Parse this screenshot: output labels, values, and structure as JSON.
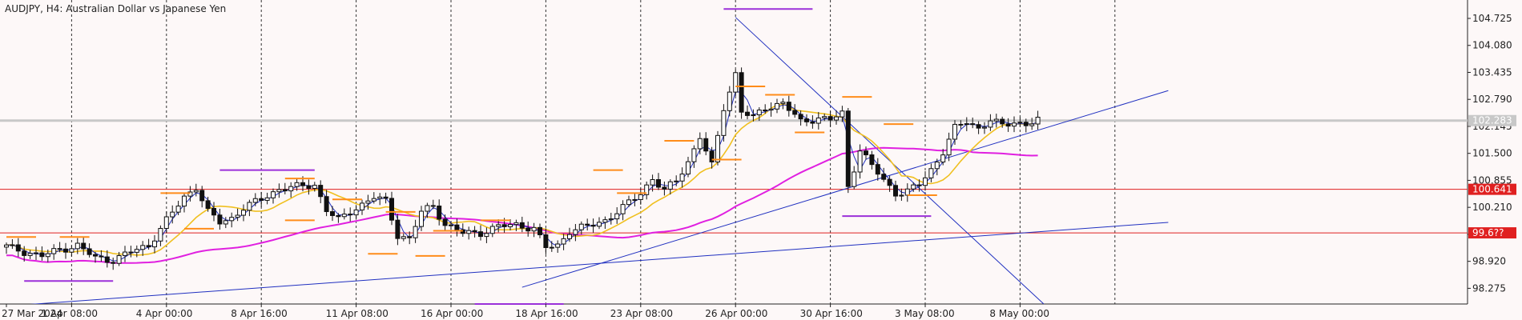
{
  "chart_data": {
    "type": "candlestick",
    "title": "AUDJPY, H4:  Australian Dollar vs Japanese Yen",
    "ylim": [
      97.9,
      105.05
    ],
    "y_ticks": [
      "104.725",
      "104.080",
      "103.435",
      "102.790",
      "102.145",
      "101.500",
      "100.855",
      "100.210",
      "99.565",
      "98.920",
      "98.275"
    ],
    "x_ticks": [
      {
        "label": "27 Mar 2024",
        "bar": 0
      },
      {
        "label": "1 Apr 08:00",
        "bar": 11
      },
      {
        "label": "4 Apr 00:00",
        "bar": 27
      },
      {
        "label": "8 Apr 16:00",
        "bar": 43
      },
      {
        "label": "11 Apr 08:00",
        "bar": 59
      },
      {
        "label": "16 Apr 00:00",
        "bar": 75
      },
      {
        "label": "18 Apr 16:00",
        "bar": 91
      },
      {
        "label": "23 Apr 08:00",
        "bar": 107
      },
      {
        "label": "26 Apr 00:00",
        "bar": 123
      },
      {
        "label": "30 Apr 16:00",
        "bar": 139
      },
      {
        "label": "3 May 08:00",
        "bar": 155
      },
      {
        "label": "8 May 00:00",
        "bar": 171
      }
    ],
    "vgrid_bars": [
      11,
      27,
      43,
      59,
      75,
      91,
      107,
      123,
      139,
      155,
      171,
      187
    ],
    "bar_count": 175,
    "price_label_current": "102.283",
    "hlines": [
      {
        "value": 100.641,
        "label": "100.641",
        "color": "#e02020"
      },
      {
        "value": 99.6,
        "label": "99.6??",
        "color": "#e02020"
      }
    ],
    "current_price": 102.283,
    "anchors": [
      {
        "bar": 0,
        "price": 99.27
      },
      {
        "bar": 3,
        "price": 99.15
      },
      {
        "bar": 6,
        "price": 99.05
      },
      {
        "bar": 9,
        "price": 99.2
      },
      {
        "bar": 12,
        "price": 99.3
      },
      {
        "bar": 15,
        "price": 99.0
      },
      {
        "bar": 18,
        "price": 98.95
      },
      {
        "bar": 21,
        "price": 99.15
      },
      {
        "bar": 24,
        "price": 99.3
      },
      {
        "bar": 27,
        "price": 99.9
      },
      {
        "bar": 30,
        "price": 100.45
      },
      {
        "bar": 32,
        "price": 100.7
      },
      {
        "bar": 34,
        "price": 100.1
      },
      {
        "bar": 36,
        "price": 99.85
      },
      {
        "bar": 38,
        "price": 99.95
      },
      {
        "bar": 40,
        "price": 100.2
      },
      {
        "bar": 43,
        "price": 100.4
      },
      {
        "bar": 46,
        "price": 100.65
      },
      {
        "bar": 49,
        "price": 100.7
      },
      {
        "bar": 52,
        "price": 100.75
      },
      {
        "bar": 54,
        "price": 100.15
      },
      {
        "bar": 56,
        "price": 99.9
      },
      {
        "bar": 59,
        "price": 100.2
      },
      {
        "bar": 62,
        "price": 100.45
      },
      {
        "bar": 64,
        "price": 100.35
      },
      {
        "bar": 66,
        "price": 99.55
      },
      {
        "bar": 68,
        "price": 99.45
      },
      {
        "bar": 70,
        "price": 100.1
      },
      {
        "bar": 72,
        "price": 100.25
      },
      {
        "bar": 74,
        "price": 99.8
      },
      {
        "bar": 77,
        "price": 99.6
      },
      {
        "bar": 80,
        "price": 99.6
      },
      {
        "bar": 83,
        "price": 99.75
      },
      {
        "bar": 86,
        "price": 99.8
      },
      {
        "bar": 89,
        "price": 99.7
      },
      {
        "bar": 91,
        "price": 99.25
      },
      {
        "bar": 93,
        "price": 99.3
      },
      {
        "bar": 95,
        "price": 99.65
      },
      {
        "bar": 98,
        "price": 99.75
      },
      {
        "bar": 101,
        "price": 99.9
      },
      {
        "bar": 104,
        "price": 100.2
      },
      {
        "bar": 107,
        "price": 100.55
      },
      {
        "bar": 109,
        "price": 100.9
      },
      {
        "bar": 111,
        "price": 100.6
      },
      {
        "bar": 113,
        "price": 100.85
      },
      {
        "bar": 115,
        "price": 101.3
      },
      {
        "bar": 117,
        "price": 101.9
      },
      {
        "bar": 119,
        "price": 101.2
      },
      {
        "bar": 121,
        "price": 102.6
      },
      {
        "bar": 123,
        "price": 103.4
      },
      {
        "bar": 124,
        "price": 102.5
      },
      {
        "bar": 126,
        "price": 102.35
      },
      {
        "bar": 128,
        "price": 102.6
      },
      {
        "bar": 131,
        "price": 102.7
      },
      {
        "bar": 134,
        "price": 102.25
      },
      {
        "bar": 137,
        "price": 102.35
      },
      {
        "bar": 139,
        "price": 102.3
      },
      {
        "bar": 141,
        "price": 102.45
      },
      {
        "bar": 142,
        "price": 100.7
      },
      {
        "bar": 144,
        "price": 101.6
      },
      {
        "bar": 146,
        "price": 101.2
      },
      {
        "bar": 148,
        "price": 100.85
      },
      {
        "bar": 150,
        "price": 100.55
      },
      {
        "bar": 152,
        "price": 100.6
      },
      {
        "bar": 154,
        "price": 100.75
      },
      {
        "bar": 156,
        "price": 101.1
      },
      {
        "bar": 158,
        "price": 101.55
      },
      {
        "bar": 160,
        "price": 102.1
      },
      {
        "bar": 162,
        "price": 102.25
      },
      {
        "bar": 164,
        "price": 102.1
      },
      {
        "bar": 166,
        "price": 102.3
      },
      {
        "bar": 168,
        "price": 102.15
      },
      {
        "bar": 170,
        "price": 102.25
      },
      {
        "bar": 172,
        "price": 102.2
      },
      {
        "bar": 174,
        "price": 102.3
      }
    ],
    "levels": [
      {
        "bar1": 0,
        "bar2": 5,
        "price": 99.5,
        "color": "#ff8c1a"
      },
      {
        "bar1": 9,
        "bar2": 14,
        "price": 99.5,
        "color": "#ff8c1a"
      },
      {
        "bar1": 3,
        "bar2": 18,
        "price": 98.45,
        "color": "#9b30d9"
      },
      {
        "bar1": 26,
        "bar2": 31,
        "price": 100.55,
        "color": "#ff8c1a"
      },
      {
        "bar1": 30,
        "bar2": 35,
        "price": 99.7,
        "color": "#ff8c1a"
      },
      {
        "bar1": 36,
        "bar2": 52,
        "price": 101.1,
        "color": "#9b30d9"
      },
      {
        "bar1": 47,
        "bar2": 52,
        "price": 100.9,
        "color": "#ff8c1a"
      },
      {
        "bar1": 47,
        "bar2": 52,
        "price": 99.9,
        "color": "#ff8c1a"
      },
      {
        "bar1": 55,
        "bar2": 60,
        "price": 100.4,
        "color": "#ff8c1a"
      },
      {
        "bar1": 61,
        "bar2": 66,
        "price": 99.1,
        "color": "#ff8c1a"
      },
      {
        "bar1": 64,
        "bar2": 69,
        "price": 100.1,
        "color": "#ff8c1a"
      },
      {
        "bar1": 69,
        "bar2": 74,
        "price": 99.05,
        "color": "#ff8c1a"
      },
      {
        "bar1": 72,
        "bar2": 77,
        "price": 99.65,
        "color": "#ff8c1a"
      },
      {
        "bar1": 80,
        "bar2": 85,
        "price": 99.9,
        "color": "#ff8c1a"
      },
      {
        "bar1": 79,
        "bar2": 94,
        "price": 97.9,
        "color": "#9b30d9"
      },
      {
        "bar1": 99,
        "bar2": 104,
        "price": 101.1,
        "color": "#ff8c1a"
      },
      {
        "bar1": 103,
        "bar2": 108,
        "price": 100.55,
        "color": "#ff8c1a"
      },
      {
        "bar1": 111,
        "bar2": 116,
        "price": 101.8,
        "color": "#ff8c1a"
      },
      {
        "bar1": 119,
        "bar2": 124,
        "price": 101.35,
        "color": "#ff8c1a"
      },
      {
        "bar1": 121,
        "bar2": 136,
        "price": 104.95,
        "color": "#9b30d9"
      },
      {
        "bar1": 123,
        "bar2": 128,
        "price": 103.1,
        "color": "#ff8c1a"
      },
      {
        "bar1": 128,
        "bar2": 133,
        "price": 102.9,
        "color": "#ff8c1a"
      },
      {
        "bar1": 133,
        "bar2": 138,
        "price": 102.0,
        "color": "#ff8c1a"
      },
      {
        "bar1": 141,
        "bar2": 146,
        "price": 102.85,
        "color": "#ff8c1a"
      },
      {
        "bar1": 141,
        "bar2": 156,
        "price": 100.0,
        "color": "#9b30d9"
      },
      {
        "bar1": 148,
        "bar2": 153,
        "price": 102.2,
        "color": "#ff8c1a"
      },
      {
        "bar1": 152,
        "bar2": 157,
        "price": 100.5,
        "color": "#ff8c1a"
      }
    ],
    "trendlines": [
      {
        "bar1": 0,
        "price1": 97.85,
        "bar2": 196,
        "price2": 99.85,
        "color": "#2030c0"
      },
      {
        "bar1": 87,
        "price1": 98.3,
        "bar2": 196,
        "price2": 103.0,
        "color": "#2030c0"
      },
      {
        "bar1": 123,
        "price1": 104.75,
        "bar2": 175,
        "price2": 97.9,
        "color": "#2030c0"
      }
    ]
  }
}
